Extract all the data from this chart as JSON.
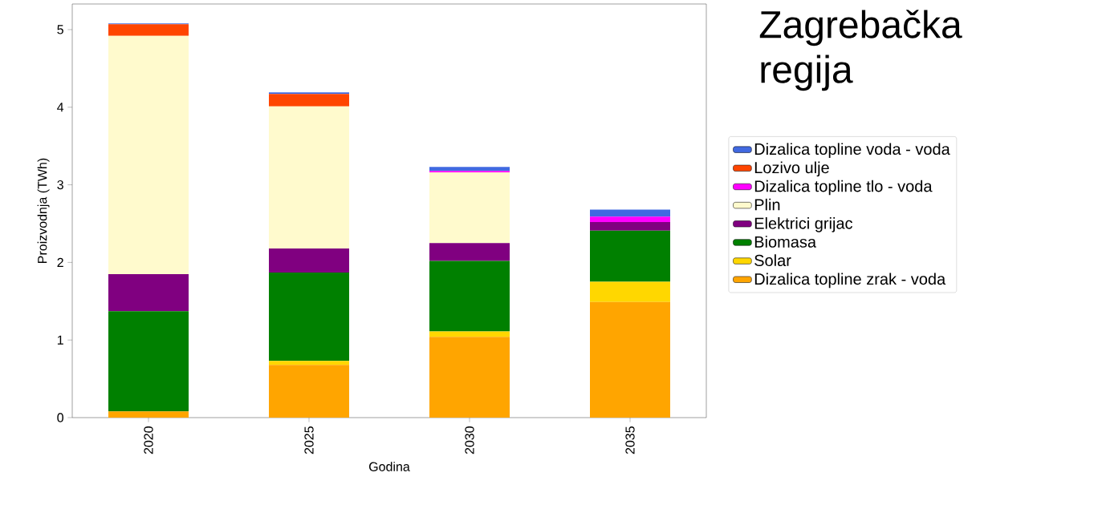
{
  "chart_data": {
    "type": "bar",
    "title": "Zagrebačka regija",
    "xlabel": "Godina",
    "ylabel": "Proizvodnja (TWh)",
    "categories": [
      "2020",
      "2025",
      "2030",
      "2035"
    ],
    "stacked": true,
    "legend": "right",
    "ylim": [
      0,
      5.33
    ],
    "yticks": [
      0,
      1,
      2,
      3,
      4,
      5
    ],
    "series": [
      {
        "name": "Dizalica topline zrak - voda",
        "color": "#ffa500",
        "values": [
          0.08,
          0.68,
          1.04,
          1.49
        ]
      },
      {
        "name": "Solar",
        "color": "#ffd700",
        "values": [
          0,
          0.05,
          0.07,
          0.26
        ]
      },
      {
        "name": "Biomasa",
        "color": "#008000",
        "values": [
          1.29,
          1.14,
          0.91,
          0.66
        ]
      },
      {
        "name": "Elektrici grijac",
        "color": "#800080",
        "values": [
          0.48,
          0.31,
          0.23,
          0.11
        ]
      },
      {
        "name": "Plin",
        "color": "#fffacd",
        "values": [
          3.07,
          1.83,
          0.91,
          0
        ]
      },
      {
        "name": "Dizalica topline tlo - voda",
        "color": "#ff00ff",
        "values": [
          0,
          0,
          0.02,
          0.07
        ]
      },
      {
        "name": "Lozivo ulje",
        "color": "#ff4500",
        "values": [
          0.15,
          0.16,
          0,
          0
        ]
      },
      {
        "name": "Dizalica topline voda - voda",
        "color": "#4169e1",
        "values": [
          0.01,
          0.02,
          0.05,
          0.09
        ]
      }
    ]
  }
}
